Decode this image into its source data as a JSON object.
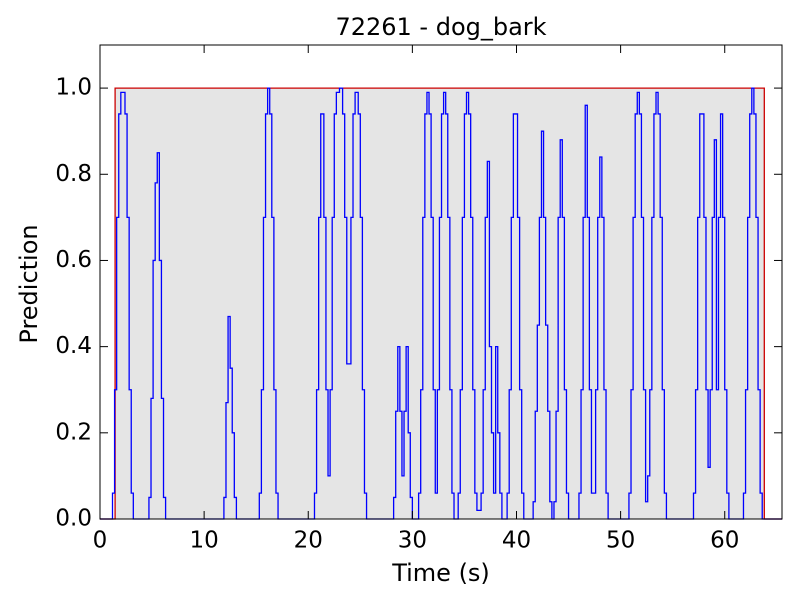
{
  "chart_data": {
    "type": "line",
    "step": "post",
    "title": "72261 - dog_bark",
    "xlabel": "Time (s)",
    "ylabel": "Prediction",
    "xlim": [
      0,
      65.5
    ],
    "ylim": [
      0,
      1.1
    ],
    "xticks": [
      0,
      10,
      20,
      30,
      40,
      50,
      60
    ],
    "yticks": [
      {
        "value": 0,
        "label": "0.0"
      },
      0.2,
      0.4,
      0.6,
      0.8,
      {
        "value": 1,
        "label": "1.0"
      }
    ],
    "series": [
      {
        "color": "#cc0000",
        "fill": "#e5e5e5",
        "x": [
          0,
          1.45,
          63.8
        ],
        "values": [
          0,
          1,
          0
        ]
      },
      {
        "color": "#0000ff",
        "x": [
          0,
          1.2,
          1.4,
          1.6,
          1.8,
          2.0,
          2.4,
          2.6,
          2.8,
          3.0,
          3.2,
          4.7,
          4.9,
          5.1,
          5.3,
          5.5,
          5.7,
          5.9,
          6.1,
          6.3,
          11.9,
          12.1,
          12.3,
          12.5,
          12.7,
          12.9,
          13.1,
          15.3,
          15.5,
          15.7,
          15.9,
          16.1,
          16.3,
          16.5,
          16.7,
          16.9,
          17.1,
          20.6,
          20.8,
          21.0,
          21.2,
          21.5,
          21.7,
          21.9,
          22.1,
          22.3,
          22.5,
          22.7,
          23.0,
          23.3,
          23.5,
          23.7,
          24.1,
          24.3,
          24.5,
          24.8,
          25.0,
          25.2,
          25.4,
          25.6,
          28.2,
          28.4,
          28.6,
          28.8,
          29.0,
          29.2,
          29.4,
          29.6,
          29.8,
          30.0,
          30.6,
          30.8,
          31.0,
          31.2,
          31.4,
          31.6,
          31.8,
          32.0,
          32.2,
          32.4,
          32.6,
          32.8,
          33.0,
          33.2,
          33.4,
          33.6,
          33.8,
          34.0,
          34.4,
          34.6,
          34.8,
          35.0,
          35.2,
          35.4,
          35.6,
          35.8,
          36.0,
          36.2,
          36.6,
          36.8,
          37.0,
          37.2,
          37.4,
          37.6,
          37.8,
          38.0,
          38.2,
          38.4,
          38.6,
          39.1,
          39.3,
          39.5,
          39.7,
          40.1,
          40.3,
          40.5,
          40.7,
          41.6,
          41.8,
          42.0,
          42.2,
          42.4,
          42.6,
          42.8,
          43.0,
          43.2,
          43.4,
          43.6,
          43.8,
          44.0,
          44.2,
          44.4,
          44.6,
          44.8,
          45.0,
          46.0,
          46.2,
          46.4,
          46.6,
          46.8,
          47.0,
          47.2,
          47.6,
          47.8,
          48.0,
          48.2,
          48.4,
          48.6,
          48.8,
          50.8,
          51.0,
          51.2,
          51.4,
          51.6,
          51.8,
          52.0,
          52.2,
          52.4,
          52.6,
          52.8,
          53.0,
          53.2,
          53.4,
          53.6,
          53.8,
          54.0,
          54.2,
          54.4,
          57.0,
          57.2,
          57.4,
          57.6,
          57.8,
          58.0,
          58.2,
          58.4,
          58.6,
          58.8,
          59.0,
          59.2,
          59.4,
          59.6,
          59.8,
          60.0,
          60.2,
          60.4,
          61.8,
          62.0,
          62.2,
          62.4,
          62.6,
          62.8,
          63.0,
          63.2,
          63.4,
          63.6
        ],
        "values": [
          0,
          0.06,
          0.3,
          0.7,
          0.94,
          0.99,
          0.94,
          0.7,
          0.3,
          0.06,
          0,
          0.05,
          0.28,
          0.6,
          0.78,
          0.85,
          0.6,
          0.28,
          0.05,
          0,
          0.05,
          0.27,
          0.47,
          0.35,
          0.2,
          0.05,
          0,
          0.06,
          0.3,
          0.7,
          0.94,
          1.0,
          0.94,
          0.7,
          0.3,
          0.06,
          0,
          0.06,
          0.3,
          0.7,
          0.94,
          0.7,
          0.3,
          0.1,
          0.3,
          0.7,
          0.94,
          0.99,
          1.0,
          0.94,
          0.7,
          0.36,
          0.7,
          0.94,
          0.99,
          0.94,
          0.7,
          0.3,
          0.06,
          0,
          0.05,
          0.25,
          0.4,
          0.25,
          0.1,
          0.25,
          0.4,
          0.2,
          0.05,
          0,
          0.06,
          0.3,
          0.7,
          0.94,
          0.99,
          0.94,
          0.7,
          0.3,
          0.06,
          0.3,
          0.7,
          0.94,
          0.99,
          0.94,
          0.7,
          0.3,
          0.06,
          0,
          0.06,
          0.3,
          0.7,
          0.94,
          0.99,
          0.94,
          0.7,
          0.3,
          0.06,
          0.02,
          0.06,
          0.3,
          0.7,
          0.83,
          0.4,
          0.2,
          0.06,
          0.4,
          0.2,
          0.06,
          0,
          0.06,
          0.3,
          0.7,
          0.94,
          0.7,
          0.3,
          0.06,
          0,
          0.04,
          0.25,
          0.45,
          0.7,
          0.9,
          0.7,
          0.45,
          0.25,
          0.04,
          0,
          0.04,
          0.25,
          0.7,
          0.88,
          0.7,
          0.3,
          0.06,
          0,
          0.06,
          0.3,
          0.7,
          0.96,
          0.7,
          0.3,
          0.06,
          0.3,
          0.7,
          0.84,
          0.7,
          0.3,
          0.06,
          0,
          0.06,
          0.3,
          0.7,
          0.94,
          0.99,
          0.94,
          0.7,
          0.3,
          0.04,
          0.1,
          0.3,
          0.7,
          0.94,
          0.99,
          0.94,
          0.7,
          0.3,
          0.06,
          0,
          0.06,
          0.3,
          0.7,
          0.94,
          0.94,
          0.7,
          0.3,
          0.12,
          0.3,
          0.7,
          0.88,
          0.3,
          0.7,
          0.94,
          0.7,
          0.3,
          0.06,
          0,
          0.06,
          0.3,
          0.7,
          0.94,
          1.0,
          0.94,
          0.7,
          0.3,
          0.06,
          0
        ]
      }
    ]
  }
}
